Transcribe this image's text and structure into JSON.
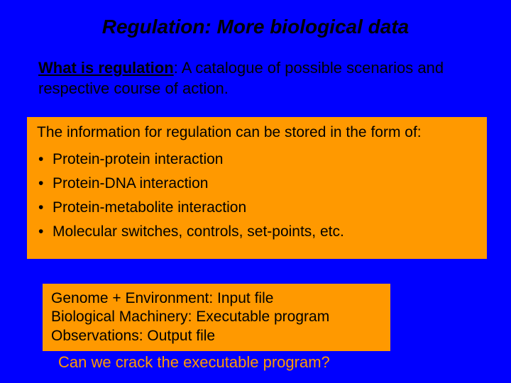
{
  "slide": {
    "background_color": "#0000ff",
    "title": {
      "text": "Regulation: More biological data",
      "color": "#000000",
      "fontsize": 28
    },
    "definition": {
      "label": "What is regulation",
      "separator": ":  ",
      "body": "A catalogue of possible scenarios and respective course of action.",
      "color": "#000000",
      "fontsize": 22
    },
    "info_box": {
      "background_color": "#ff9900",
      "lead": "The information for regulation can be stored in the form of:",
      "bullets": [
        "Protein-protein interaction",
        "Protein-DNA interaction",
        "Protein-metabolite interaction",
        "Molecular switches, controls, set-points, etc."
      ],
      "text_color": "#000000",
      "fontsize": 21
    },
    "analogy_box": {
      "background_color": "#ff9900",
      "lines": [
        "Genome + Environment:  Input file",
        "Biological Machinery:  Executable program",
        "Observations:  Output file"
      ],
      "text_color": "#000000",
      "fontsize": 21
    },
    "closing": {
      "text": "Can we crack the executable program?",
      "color": "#ff9900",
      "fontsize": 22
    }
  }
}
